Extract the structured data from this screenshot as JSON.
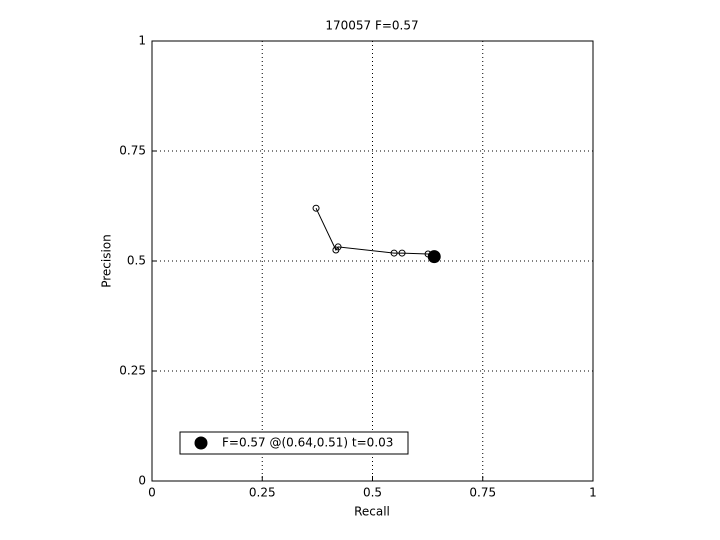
{
  "chart_data": {
    "type": "line",
    "title": "170057 F=0.57",
    "x_label": "Recall",
    "y_label": "Precision",
    "series": [
      {
        "color": "#000000",
        "marker": "open-circle",
        "x": [
          0.372,
          0.417,
          0.422,
          0.549,
          0.567,
          0.626,
          0.635
        ],
        "values": [
          0.62,
          0.525,
          0.532,
          0.518,
          0.518,
          0.516,
          0.514
        ]
      },
      {
        "name": "F=0.57 @(0.64,0.51) t=0.03",
        "color": "#000000",
        "marker": "filled-circle",
        "x": [
          0.64
        ],
        "values": [
          0.51
        ]
      }
    ],
    "xlim": [
      0,
      1
    ],
    "ylim": [
      0,
      1
    ],
    "xticks": [
      0,
      0.25,
      0.5,
      0.75,
      1
    ],
    "yticks": [
      0,
      0.25,
      0.5,
      0.75,
      1
    ],
    "grid": true,
    "legend": "lower left"
  }
}
